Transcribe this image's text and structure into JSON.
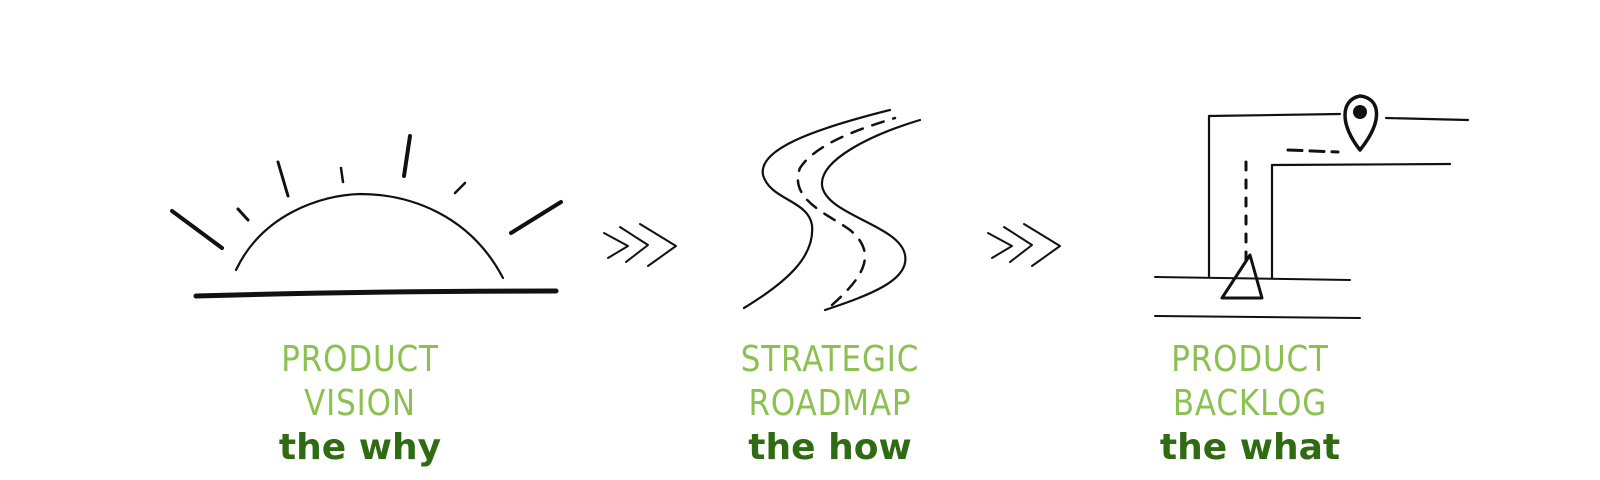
{
  "steps": [
    {
      "title_line1": "PRODUCT",
      "title_line2": "VISION",
      "subtitle": "the why",
      "icon": "sunrise-icon"
    },
    {
      "title_line1": "STRATEGIC",
      "title_line2": "ROADMAP",
      "subtitle": "the how",
      "icon": "winding-road-icon"
    },
    {
      "title_line1": "PRODUCT",
      "title_line2": "BACKLOG",
      "subtitle": "the what",
      "icon": "road-with-location-pin-icon"
    }
  ],
  "connectors": [
    "triple-chevron-arrow-icon",
    "triple-chevron-arrow-icon"
  ],
  "colors": {
    "title": "#8cc152",
    "subtitle": "#2e6b12",
    "ink": "#111111"
  }
}
